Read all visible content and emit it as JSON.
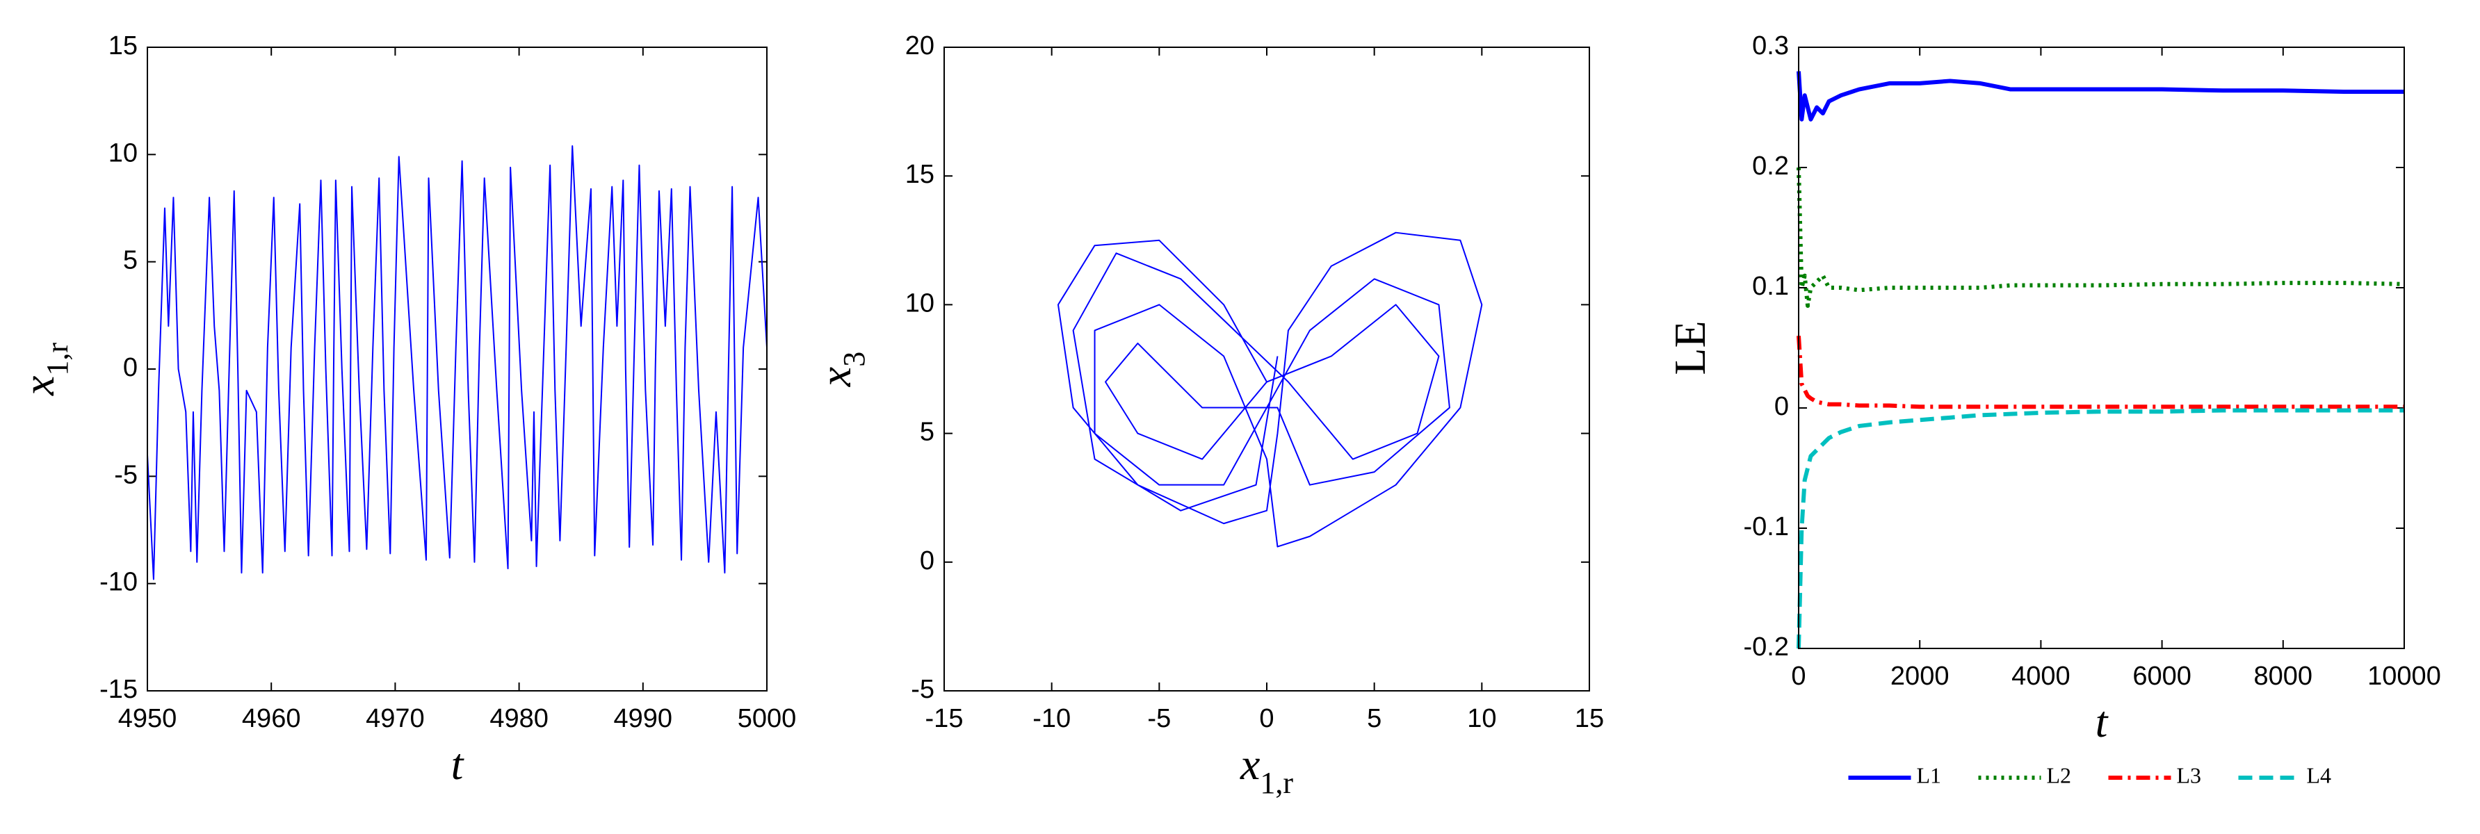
{
  "chart_data": [
    {
      "type": "line",
      "xlabel": "t",
      "ylabel": "x",
      "ylabel_sub": "1,r",
      "color": "#0000ff",
      "xlim": [
        4950,
        5000
      ],
      "xticks": [
        4950,
        4960,
        4970,
        4980,
        4990,
        5000
      ],
      "ylim": [
        -15,
        15
      ],
      "yticks": [
        -15,
        -10,
        -5,
        0,
        5,
        10,
        15
      ],
      "x": [
        4950,
        4950.5,
        4950.9,
        4951.4,
        4951.7,
        4952.1,
        4952.5,
        4953.1,
        4953.5,
        4953.7,
        4954,
        4954.4,
        4955,
        4955.4,
        4955.8,
        4956.2,
        4956.6,
        4957,
        4957.3,
        4957.6,
        4958,
        4958.8,
        4959.3,
        4959.7,
        4960.2,
        4960.6,
        4961.1,
        4961.6,
        4962.3,
        4962.6,
        4963,
        4963.5,
        4964,
        4964.4,
        4964.9,
        4965.05,
        4965.2,
        4965.7,
        4966.3,
        4966.4,
        4966.5,
        4967.1,
        4967.7,
        4968.2,
        4968.7,
        4969.1,
        4969.6,
        4969.9,
        4970.3,
        4971.5,
        4972.5,
        4972.6,
        4972.7,
        4973.5,
        4974.4,
        4974.9,
        4975.4,
        4975.9,
        4976.4,
        4976.8,
        4977.2,
        4978.2,
        4979.1,
        4979.2,
        4979.3,
        4980.2,
        4981,
        4981.2,
        4981.4,
        4982,
        4982.5,
        4982.9,
        4983.3,
        4983.8,
        4984.3,
        4985,
        4985.8,
        4985.95,
        4986.1,
        4986.8,
        4987.5,
        4987.9,
        4988.4,
        4988.6,
        4988.9,
        4989.3,
        4989.7,
        4990.2,
        4990.8,
        4991,
        4991.3,
        4991.8,
        4992.3,
        4992.7,
        4993.1,
        4993.4,
        4993.8,
        4994.5,
        4995.3,
        4995.9,
        4996.6,
        4996.9,
        4997.2,
        4997.4,
        4997.6,
        4998.1,
        4999.3,
        5000
      ],
      "values": [
        -4,
        -9.8,
        -1,
        7.5,
        2,
        8,
        0,
        -2,
        -8.5,
        -2,
        -9,
        -1,
        8,
        2,
        -1,
        -8.5,
        0,
        8.3,
        0,
        -9.5,
        -1,
        -2,
        -9.5,
        1,
        8,
        -1,
        -8.5,
        1,
        7.7,
        -1,
        -8.7,
        1,
        8.8,
        0,
        -8.7,
        1,
        8.8,
        0,
        -8.5,
        0,
        8.5,
        -1,
        -8.4,
        1,
        8.9,
        -1,
        -8.6,
        1,
        9.9,
        -1,
        -8.9,
        0,
        8.9,
        -1,
        -8.8,
        1,
        9.7,
        -1,
        -9,
        1,
        8.9,
        -1,
        -9.3,
        0,
        9.4,
        -1,
        -8,
        -2,
        -9.2,
        1,
        9.5,
        -1,
        -8,
        1,
        10.4,
        2,
        8.4,
        0,
        -8.7,
        1,
        8.5,
        2,
        8.8,
        0,
        -8.3,
        1,
        9.5,
        -1,
        -8.2,
        0,
        8.3,
        2,
        8.4,
        -1,
        -8.9,
        1,
        8.5,
        -1,
        -9,
        -2,
        -9.5,
        0,
        8.5,
        0,
        -8.6,
        1,
        8,
        1
      ]
    },
    {
      "type": "line",
      "xlabel": "x",
      "xlabel_sub": "1,r",
      "ylabel": "x",
      "ylabel_sub": "3",
      "color": "#0000ff",
      "xlim": [
        -15,
        15
      ],
      "xticks": [
        -15,
        -10,
        -5,
        0,
        5,
        10,
        15
      ],
      "ylim": [
        -5,
        20
      ],
      "yticks": [
        -5,
        0,
        5,
        10,
        15,
        20
      ],
      "x": [
        0,
        -2,
        -5,
        -8,
        -9.7,
        -9,
        -6,
        -2,
        0,
        0.5,
        1,
        3,
        6,
        9,
        10,
        9,
        6,
        2,
        0.5,
        0,
        -2,
        -5,
        -8,
        -8,
        -5,
        -2,
        0,
        2,
        5,
        8,
        8.5,
        5,
        2,
        0.5,
        -3,
        -6,
        -7.5,
        -6,
        -3,
        0,
        3,
        6,
        8,
        7,
        4,
        1,
        -4,
        -7,
        -9,
        -8,
        -4,
        -0.5,
        0.5
      ],
      "values": [
        7,
        10,
        12.5,
        12.3,
        10,
        6,
        3,
        1.5,
        2,
        5,
        9,
        11.5,
        12.8,
        12.5,
        10,
        6,
        3,
        1,
        0.6,
        4,
        8,
        10,
        9,
        5,
        3,
        3,
        6,
        9,
        11,
        10,
        6,
        3.5,
        3,
        6,
        6,
        8.5,
        7,
        5,
        4,
        7,
        8,
        10,
        8,
        5,
        4,
        7,
        11,
        12,
        9,
        4,
        2,
        3,
        8
      ]
    },
    {
      "type": "line",
      "xlabel": "t",
      "ylabel": "LE",
      "legend": "bottom",
      "xlim": [
        0,
        10000
      ],
      "xticks": [
        0,
        2000,
        4000,
        6000,
        8000,
        10000
      ],
      "ylim": [
        -0.2,
        0.3
      ],
      "yticks": [
        -0.2,
        -0.1,
        0,
        0.1,
        0.2,
        0.3
      ],
      "x": [
        0,
        50,
        100,
        150,
        200,
        300,
        400,
        500,
        700,
        1000,
        1500,
        2000,
        2500,
        3000,
        3500,
        4000,
        5000,
        6000,
        7000,
        8000,
        9000,
        10000
      ],
      "series": [
        {
          "name": "L1",
          "color": "#0000ff",
          "linestyle": "solid",
          "values": [
            0.28,
            0.24,
            0.26,
            0.25,
            0.24,
            0.25,
            0.245,
            0.255,
            0.26,
            0.265,
            0.27,
            0.27,
            0.272,
            0.27,
            0.265,
            0.265,
            0.265,
            0.265,
            0.264,
            0.264,
            0.263,
            0.263
          ]
        },
        {
          "name": "L2",
          "color": "#008000",
          "linestyle": "dotted",
          "values": [
            0.2,
            0.1,
            0.11,
            0.085,
            0.1,
            0.105,
            0.11,
            0.1,
            0.1,
            0.098,
            0.1,
            0.1,
            0.1,
            0.1,
            0.102,
            0.102,
            0.102,
            0.103,
            0.103,
            0.104,
            0.104,
            0.103
          ]
        },
        {
          "name": "L3",
          "color": "#ff0000",
          "linestyle": "dashdot",
          "values": [
            0.06,
            0.02,
            0.015,
            0.01,
            0.008,
            0.005,
            0.004,
            0.003,
            0.003,
            0.002,
            0.002,
            0.001,
            0.001,
            0.001,
            0.001,
            0.001,
            0.001,
            0.001,
            0.001,
            0.001,
            0.001,
            0.001
          ]
        },
        {
          "name": "L4",
          "color": "#00bfbf",
          "linestyle": "dashed",
          "values": [
            -0.2,
            -0.1,
            -0.06,
            -0.05,
            -0.04,
            -0.035,
            -0.03,
            -0.025,
            -0.02,
            -0.015,
            -0.012,
            -0.01,
            -0.008,
            -0.006,
            -0.005,
            -0.004,
            -0.003,
            -0.003,
            -0.002,
            -0.002,
            -0.002,
            -0.002
          ]
        }
      ]
    }
  ]
}
